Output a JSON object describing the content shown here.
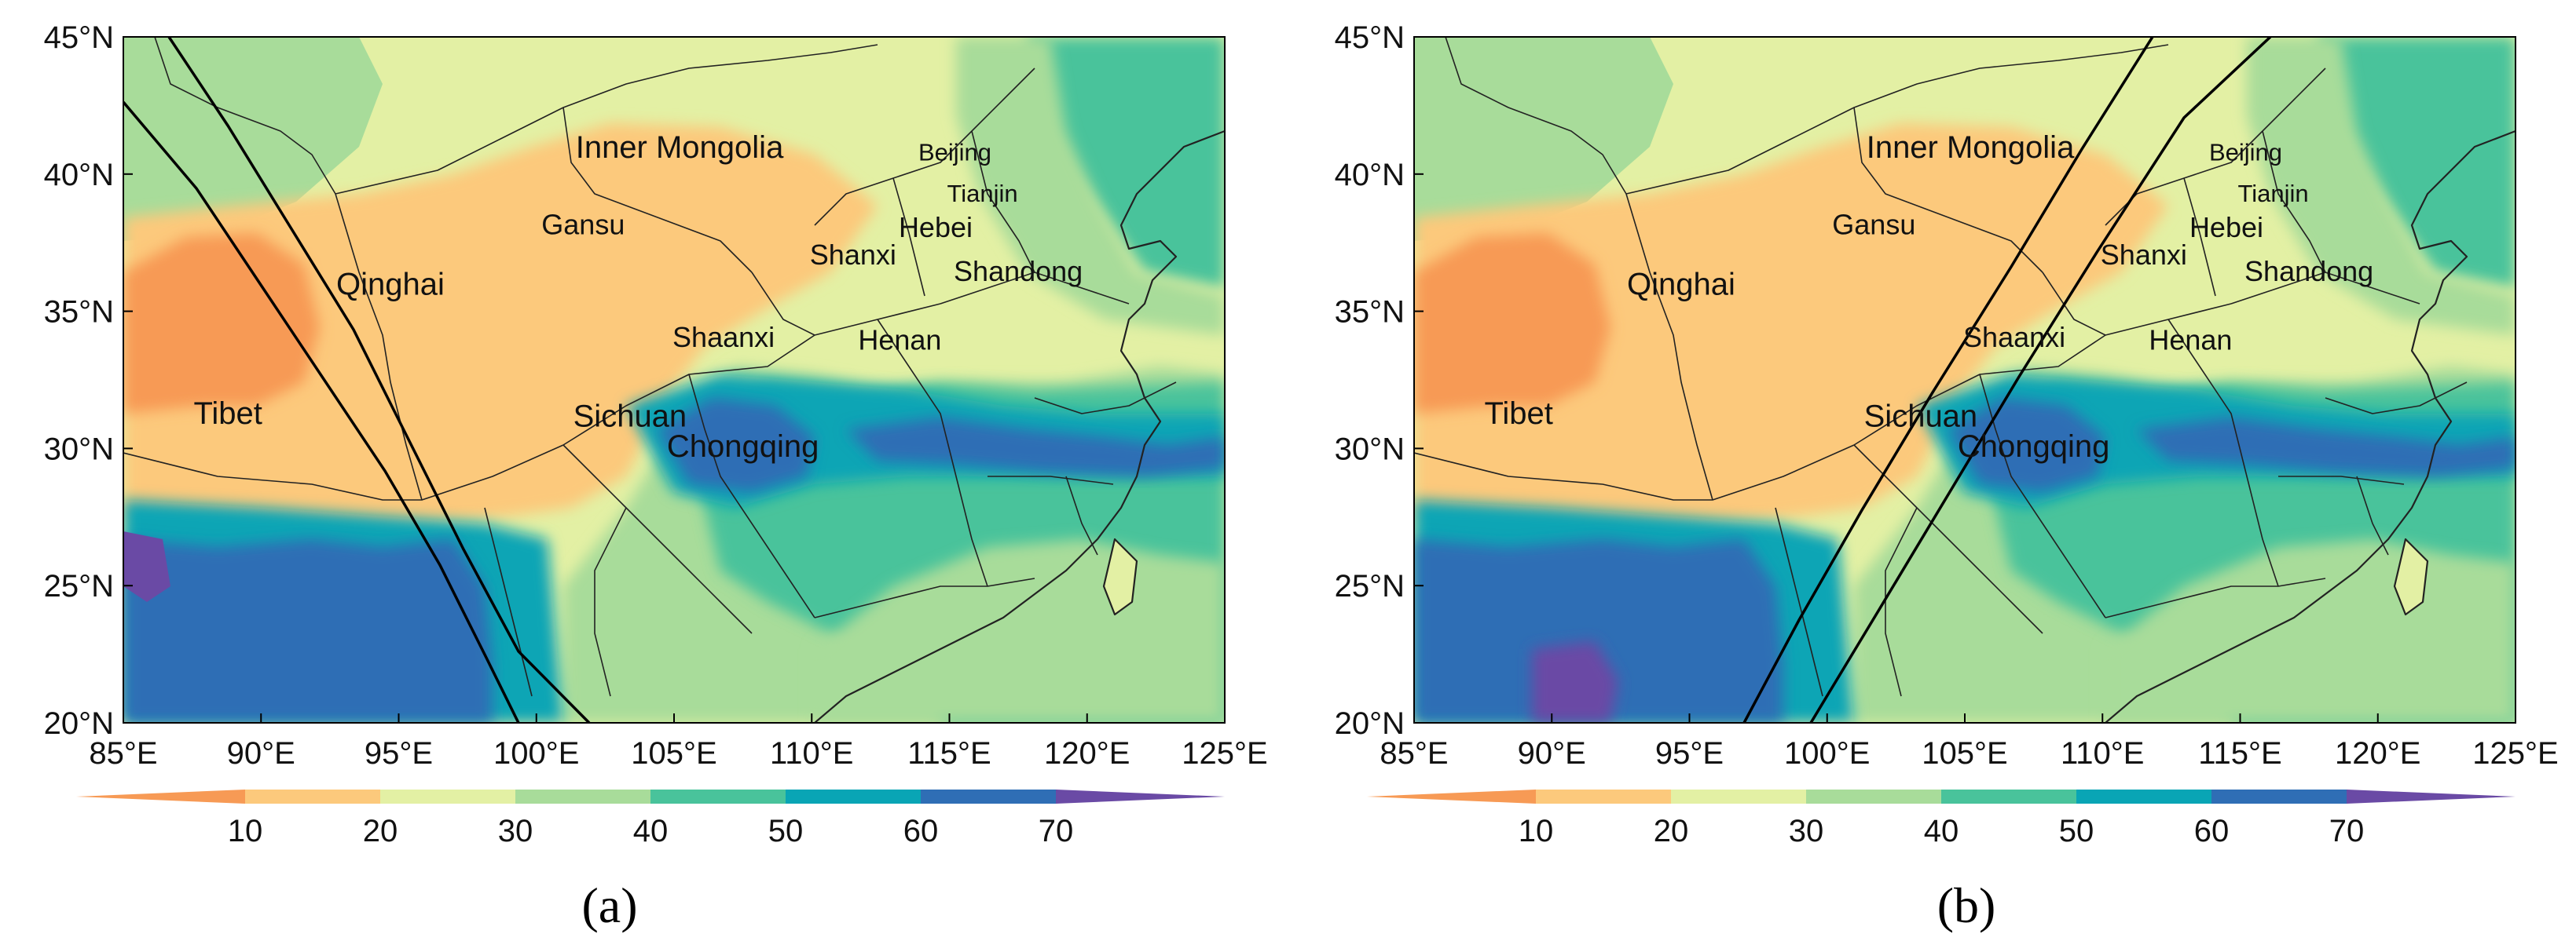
{
  "figure": {
    "colors": {
      "band_0_10": "#f79a55",
      "band_10_20": "#fcc97c",
      "band_20_30": "#e3f0a4",
      "band_30_40": "#a8dc9a",
      "band_40_50": "#49c39b",
      "band_50_60": "#09a5b5",
      "band_60_70": "#2f6eb5",
      "band_70_plus": "#6a4aa5",
      "track_line": "#000000",
      "border_line": "#222222"
    },
    "colorbar": {
      "ticks": [
        "10",
        "20",
        "30",
        "40",
        "50",
        "60",
        "70"
      ]
    },
    "panels": [
      {
        "label": "(a)",
        "x_ticks": [
          "85°E",
          "90°E",
          "95°E",
          "100°E",
          "105°E",
          "110°E",
          "115°E",
          "120°E",
          "125°E"
        ],
        "y_ticks": [
          "45°N",
          "40°N",
          "35°N",
          "30°N",
          "25°N",
          "20°N"
        ],
        "provinces": [
          {
            "name": "Inner Mongolia",
            "lon": 105.2,
            "lat": 40.6,
            "size": "large"
          },
          {
            "name": "Beijing",
            "lon": 115.2,
            "lat": 40.5,
            "size": "small"
          },
          {
            "name": "Tianjin",
            "lon": 116.2,
            "lat": 39.0,
            "size": "small"
          },
          {
            "name": "Hebei",
            "lon": 114.5,
            "lat": 37.7,
            "size": "medium"
          },
          {
            "name": "Gansu",
            "lon": 101.7,
            "lat": 37.8,
            "size": "medium"
          },
          {
            "name": "Shanxi",
            "lon": 111.5,
            "lat": 36.7,
            "size": "medium"
          },
          {
            "name": "Shandong",
            "lon": 117.5,
            "lat": 36.1,
            "size": "medium"
          },
          {
            "name": "Qinghai",
            "lon": 94.7,
            "lat": 35.6,
            "size": "large"
          },
          {
            "name": "Shaanxi",
            "lon": 106.8,
            "lat": 33.7,
            "size": "medium"
          },
          {
            "name": "Henan",
            "lon": 113.2,
            "lat": 33.6,
            "size": "medium"
          },
          {
            "name": "Tibet",
            "lon": 88.8,
            "lat": 30.9,
            "size": "large"
          },
          {
            "name": "Sichuan",
            "lon": 103.4,
            "lat": 30.8,
            "size": "large"
          },
          {
            "name": "Chongqing",
            "lon": 107.5,
            "lat": 29.7,
            "size": "large"
          }
        ]
      },
      {
        "label": "(b)",
        "x_ticks": [
          "85°E",
          "90°E",
          "95°E",
          "100°E",
          "105°E",
          "110°E",
          "115°E",
          "120°E",
          "125°E"
        ],
        "y_ticks": [
          "45°N",
          "40°N",
          "35°N",
          "30°N",
          "25°N",
          "20°N"
        ],
        "provinces": [
          {
            "name": "Inner Mongolia",
            "lon": 105.2,
            "lat": 40.6,
            "size": "large"
          },
          {
            "name": "Beijing",
            "lon": 115.2,
            "lat": 40.5,
            "size": "small"
          },
          {
            "name": "Tianjin",
            "lon": 116.2,
            "lat": 39.0,
            "size": "small"
          },
          {
            "name": "Hebei",
            "lon": 114.5,
            "lat": 37.7,
            "size": "medium"
          },
          {
            "name": "Gansu",
            "lon": 101.7,
            "lat": 37.8,
            "size": "medium"
          },
          {
            "name": "Shanxi",
            "lon": 111.5,
            "lat": 36.7,
            "size": "medium"
          },
          {
            "name": "Shandong",
            "lon": 117.5,
            "lat": 36.1,
            "size": "medium"
          },
          {
            "name": "Qinghai",
            "lon": 94.7,
            "lat": 35.6,
            "size": "large"
          },
          {
            "name": "Shaanxi",
            "lon": 106.8,
            "lat": 33.7,
            "size": "medium"
          },
          {
            "name": "Henan",
            "lon": 113.2,
            "lat": 33.6,
            "size": "medium"
          },
          {
            "name": "Tibet",
            "lon": 88.8,
            "lat": 30.9,
            "size": "large"
          },
          {
            "name": "Sichuan",
            "lon": 103.4,
            "lat": 30.8,
            "size": "large"
          },
          {
            "name": "Chongqing",
            "lon": 107.5,
            "lat": 29.7,
            "size": "large"
          }
        ]
      }
    ]
  }
}
